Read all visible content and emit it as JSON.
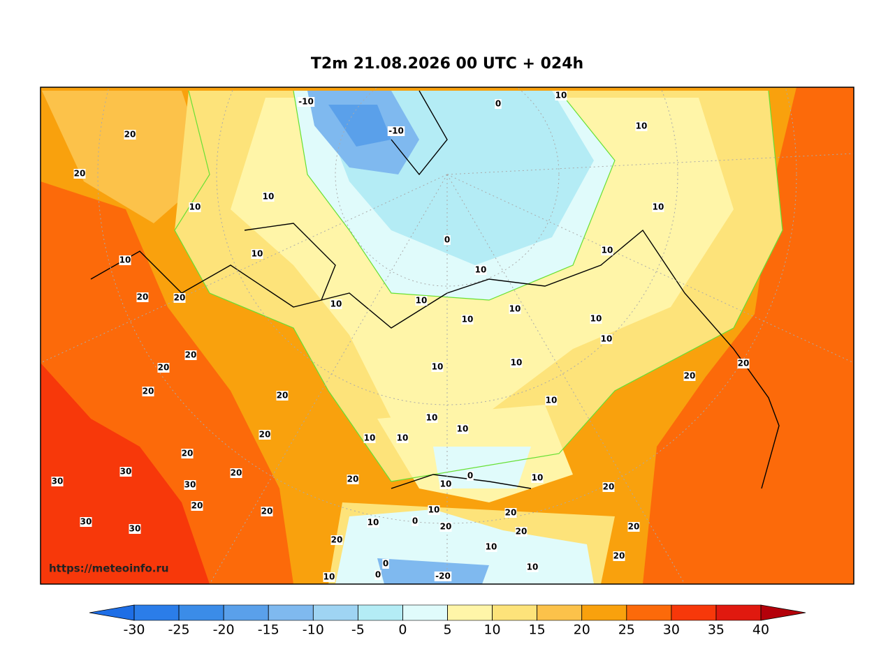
{
  "header": {
    "title": "T2m 21.08.2026 00 UTC + 024h"
  },
  "watermark": "https://meteoinfo.ru",
  "contour_labels": [
    20,
    20,
    10,
    10,
    -10,
    -10,
    0,
    10,
    10,
    10,
    0,
    10,
    10,
    10,
    10,
    20,
    20,
    10,
    10,
    10,
    10,
    10,
    10,
    20,
    20,
    10,
    10,
    20,
    20,
    20,
    20,
    10,
    10,
    10,
    10,
    10,
    20,
    20,
    30,
    30,
    20,
    20,
    0,
    10,
    10,
    30,
    20,
    20,
    20,
    10,
    20,
    10,
    0,
    20,
    30,
    30,
    20,
    20,
    20,
    10,
    20,
    0,
    10,
    10,
    0,
    -20
  ],
  "colorbar": {
    "ticks": [
      -30,
      -25,
      -20,
      -15,
      -10,
      -5,
      0,
      5,
      10,
      15,
      20,
      25,
      30,
      35,
      40
    ],
    "colors": [
      "#2b7de9",
      "#3b8ce8",
      "#5aa0ea",
      "#7fb9ef",
      "#9fd4f3",
      "#b4ecf5",
      "#e0fbfb",
      "#fff5a8",
      "#fde37a",
      "#fcc24a",
      "#f9a10d",
      "#fc6a0a",
      "#f7380a",
      "#e0190f"
    ],
    "under_color": "#1e6ee6",
    "over_color": "#b4000a"
  }
}
